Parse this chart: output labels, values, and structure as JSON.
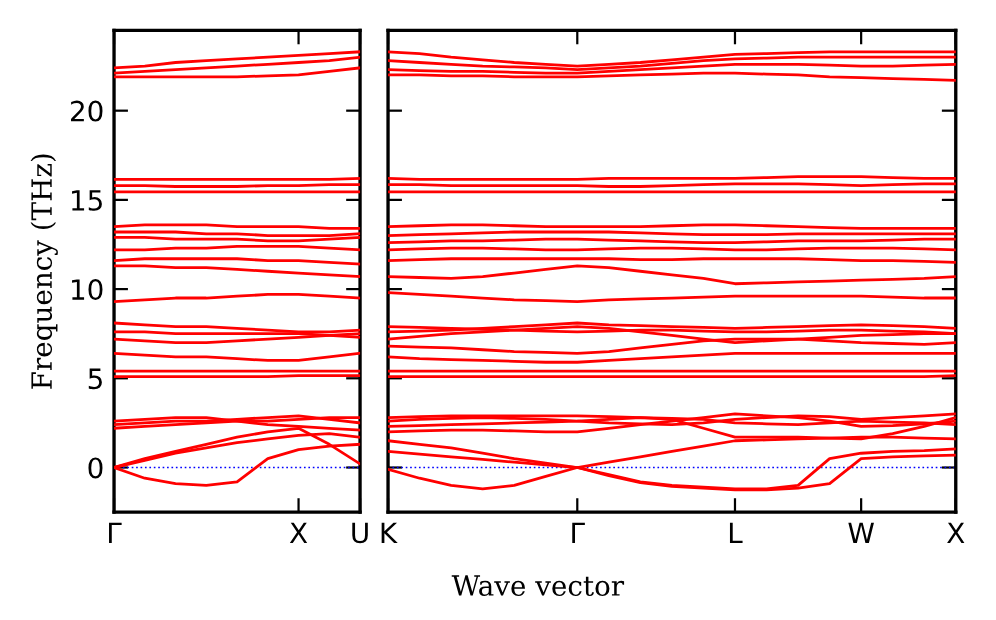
{
  "chart_data": [
    {
      "type": "line",
      "ylabel": "Frequency (THz)",
      "ylim": [
        -2.5,
        24.5
      ],
      "yticks": [
        0,
        5,
        10,
        15,
        20
      ],
      "categories": [
        "Γ",
        null,
        null,
        null,
        null,
        null,
        "X",
        null,
        "U"
      ],
      "ref_lines": [
        {
          "axis": "y",
          "value": 0,
          "color": "#0000ff",
          "line_style": "dotted"
        }
      ],
      "series": [
        {
          "color": "#ff0000",
          "values": [
            0,
            -0.6,
            -0.9,
            -1.0,
            -0.8,
            0.5,
            1.0,
            1.2,
            1.3
          ]
        },
        {
          "color": "#ff0000",
          "values": [
            0,
            0.4,
            0.8,
            1.1,
            1.4,
            1.6,
            1.8,
            1.9,
            1.7
          ]
        },
        {
          "color": "#ff0000",
          "values": [
            0,
            0.5,
            0.9,
            1.3,
            1.7,
            2.0,
            2.2,
            1.3,
            0.2
          ]
        },
        {
          "color": "#ff0000",
          "values": [
            2.2,
            2.3,
            2.4,
            2.5,
            2.6,
            2.6,
            2.7,
            2.8,
            2.8
          ]
        },
        {
          "color": "#ff0000",
          "values": [
            2.4,
            2.5,
            2.6,
            2.6,
            2.7,
            2.8,
            2.9,
            2.7,
            2.5
          ]
        },
        {
          "color": "#ff0000",
          "values": [
            2.6,
            2.7,
            2.8,
            2.8,
            2.6,
            2.4,
            2.3,
            2.2,
            2.1
          ]
        },
        {
          "color": "#ff0000",
          "values": [
            5.1,
            5.1,
            5.1,
            5.1,
            5.1,
            5.1,
            5.15,
            5.15,
            5.15
          ]
        },
        {
          "color": "#ff0000",
          "values": [
            5.4,
            5.4,
            5.4,
            5.4,
            5.4,
            5.4,
            5.4,
            5.4,
            5.4
          ]
        },
        {
          "color": "#ff0000",
          "values": [
            6.4,
            6.3,
            6.2,
            6.2,
            6.1,
            6.0,
            6.0,
            6.2,
            6.4
          ]
        },
        {
          "color": "#ff0000",
          "values": [
            7.2,
            7.1,
            7.0,
            7.0,
            7.1,
            7.2,
            7.3,
            7.4,
            7.5
          ]
        },
        {
          "color": "#ff0000",
          "values": [
            7.6,
            7.6,
            7.5,
            7.5,
            7.5,
            7.5,
            7.5,
            7.4,
            7.3
          ]
        },
        {
          "color": "#ff0000",
          "values": [
            8.1,
            8.0,
            7.9,
            7.9,
            7.8,
            7.7,
            7.6,
            7.6,
            7.7
          ]
        },
        {
          "color": "#ff0000",
          "values": [
            9.3,
            9.4,
            9.5,
            9.5,
            9.6,
            9.7,
            9.7,
            9.6,
            9.5
          ]
        },
        {
          "color": "#ff0000",
          "values": [
            11.3,
            11.3,
            11.2,
            11.2,
            11.1,
            11.0,
            10.9,
            10.8,
            10.7
          ]
        },
        {
          "color": "#ff0000",
          "values": [
            11.6,
            11.7,
            11.7,
            11.7,
            11.7,
            11.6,
            11.6,
            11.5,
            11.4
          ]
        },
        {
          "color": "#ff0000",
          "values": [
            12.2,
            12.2,
            12.3,
            12.3,
            12.4,
            12.4,
            12.4,
            12.3,
            12.2
          ]
        },
        {
          "color": "#ff0000",
          "values": [
            12.9,
            12.9,
            12.8,
            12.8,
            12.8,
            12.7,
            12.7,
            12.8,
            12.9
          ]
        },
        {
          "color": "#ff0000",
          "values": [
            13.2,
            13.2,
            13.2,
            13.1,
            13.1,
            13.0,
            13.0,
            13.0,
            13.1
          ]
        },
        {
          "color": "#ff0000",
          "values": [
            13.5,
            13.6,
            13.6,
            13.6,
            13.5,
            13.5,
            13.5,
            13.4,
            13.4
          ]
        },
        {
          "color": "#ff0000",
          "values": [
            15.45,
            15.45,
            15.45,
            15.45,
            15.45,
            15.45,
            15.45,
            15.45,
            15.45
          ]
        },
        {
          "color": "#ff0000",
          "values": [
            15.8,
            15.8,
            15.75,
            15.75,
            15.75,
            15.8,
            15.8,
            15.85,
            15.85
          ]
        },
        {
          "color": "#ff0000",
          "values": [
            16.15,
            16.15,
            16.15,
            16.15,
            16.15,
            16.15,
            16.15,
            16.15,
            16.2
          ]
        },
        {
          "color": "#ff0000",
          "values": [
            21.9,
            21.9,
            21.9,
            21.9,
            21.9,
            21.95,
            22.0,
            22.2,
            22.4
          ]
        },
        {
          "color": "#ff0000",
          "values": [
            22.1,
            22.2,
            22.3,
            22.4,
            22.5,
            22.6,
            22.7,
            22.8,
            23.0
          ]
        },
        {
          "color": "#ff0000",
          "values": [
            22.4,
            22.5,
            22.7,
            22.8,
            22.9,
            23.0,
            23.1,
            23.2,
            23.3
          ]
        }
      ]
    },
    {
      "type": "line",
      "xlabel": "Wave vector",
      "tick_labels": "x",
      "ylim": [
        -2.5,
        24.5
      ],
      "yticks": [
        0,
        5,
        10,
        15,
        20
      ],
      "categories": [
        "K",
        null,
        null,
        null,
        null,
        null,
        "Γ",
        null,
        null,
        null,
        null,
        "L",
        null,
        null,
        null,
        "W",
        null,
        null,
        "X"
      ],
      "ref_lines": [
        {
          "axis": "y",
          "value": 0,
          "color": "#0000ff",
          "line_style": "dotted"
        }
      ],
      "series": [
        {
          "color": "#ff0000",
          "values": [
            -0.1,
            -0.6,
            -1.0,
            -1.2,
            -1.0,
            -0.5,
            0,
            -0.4,
            -0.8,
            -1.0,
            -1.1,
            -1.2,
            -1.2,
            -1.0,
            0.5,
            0.8,
            0.9,
            0.95,
            1.05
          ]
        },
        {
          "color": "#ff0000",
          "values": [
            0.9,
            0.75,
            0.6,
            0.45,
            0.3,
            0.15,
            0,
            -0.45,
            -0.85,
            -1.05,
            -1.15,
            -1.25,
            -1.25,
            -1.15,
            -0.9,
            0.5,
            0.6,
            0.65,
            0.7
          ]
        },
        {
          "color": "#ff0000",
          "values": [
            1.5,
            1.3,
            1.1,
            0.8,
            0.5,
            0.25,
            0,
            0.3,
            0.6,
            0.9,
            1.2,
            1.5,
            1.55,
            1.6,
            1.65,
            1.7,
            1.7,
            1.65,
            1.6
          ]
        },
        {
          "color": "#ff0000",
          "values": [
            2.0,
            2.05,
            2.1,
            2.1,
            2.05,
            2.0,
            2.0,
            2.2,
            2.4,
            2.6,
            2.8,
            3.0,
            2.9,
            2.8,
            2.6,
            2.3,
            2.35,
            2.45,
            2.6
          ]
        },
        {
          "color": "#ff0000",
          "values": [
            2.3,
            2.35,
            2.4,
            2.45,
            2.5,
            2.55,
            2.6,
            2.7,
            2.8,
            2.7,
            2.2,
            1.7,
            1.7,
            1.7,
            1.65,
            1.6,
            1.9,
            2.3,
            2.8
          ]
        },
        {
          "color": "#ff0000",
          "values": [
            2.6,
            2.7,
            2.75,
            2.8,
            2.75,
            2.7,
            2.6,
            2.5,
            2.45,
            2.4,
            2.5,
            2.7,
            2.8,
            2.9,
            2.85,
            2.7,
            2.8,
            2.9,
            3.0
          ]
        },
        {
          "color": "#ff0000",
          "values": [
            2.8,
            2.85,
            2.9,
            2.9,
            2.9,
            2.9,
            2.9,
            2.85,
            2.8,
            2.75,
            2.7,
            2.5,
            2.45,
            2.4,
            2.5,
            2.6,
            2.55,
            2.5,
            2.4
          ]
        },
        {
          "color": "#ff0000",
          "values": [
            5.1,
            5.1,
            5.1,
            5.1,
            5.1,
            5.1,
            5.1,
            5.1,
            5.1,
            5.1,
            5.1,
            5.1,
            5.1,
            5.1,
            5.1,
            5.1,
            5.1,
            5.1,
            5.15
          ]
        },
        {
          "color": "#ff0000",
          "values": [
            5.4,
            5.4,
            5.4,
            5.4,
            5.4,
            5.4,
            5.4,
            5.4,
            5.4,
            5.4,
            5.4,
            5.4,
            5.4,
            5.4,
            5.4,
            5.4,
            5.4,
            5.4,
            5.4
          ]
        },
        {
          "color": "#ff0000",
          "values": [
            6.2,
            6.1,
            6.05,
            6.0,
            5.95,
            5.9,
            5.9,
            6.0,
            6.1,
            6.2,
            6.3,
            6.4,
            6.4,
            6.4,
            6.4,
            6.4,
            6.4,
            6.4,
            6.4
          ]
        },
        {
          "color": "#ff0000",
          "values": [
            6.8,
            6.75,
            6.7,
            6.6,
            6.5,
            6.45,
            6.4,
            6.5,
            6.7,
            6.9,
            7.1,
            7.2,
            7.2,
            7.2,
            7.1,
            7.0,
            6.95,
            6.9,
            7.0
          ]
        },
        {
          "color": "#ff0000",
          "values": [
            7.2,
            7.35,
            7.5,
            7.6,
            7.7,
            7.8,
            7.9,
            7.8,
            7.6,
            7.4,
            7.2,
            7.0,
            7.1,
            7.2,
            7.3,
            7.4,
            7.45,
            7.5,
            7.5
          ]
        },
        {
          "color": "#ff0000",
          "values": [
            7.6,
            7.65,
            7.7,
            7.8,
            7.9,
            8.0,
            8.1,
            8.0,
            7.95,
            7.9,
            7.85,
            7.8,
            7.85,
            7.9,
            7.95,
            8.0,
            7.95,
            7.9,
            7.8
          ]
        },
        {
          "color": "#ff0000",
          "values": [
            7.9,
            7.85,
            7.8,
            7.75,
            7.7,
            7.65,
            7.6,
            7.65,
            7.7,
            7.7,
            7.65,
            7.6,
            7.6,
            7.65,
            7.7,
            7.7,
            7.65,
            7.6,
            7.5
          ]
        },
        {
          "color": "#ff0000",
          "values": [
            9.8,
            9.7,
            9.6,
            9.5,
            9.4,
            9.35,
            9.3,
            9.4,
            9.45,
            9.5,
            9.55,
            9.6,
            9.6,
            9.6,
            9.6,
            9.6,
            9.55,
            9.5,
            9.5
          ]
        },
        {
          "color": "#ff0000",
          "values": [
            10.7,
            10.65,
            10.6,
            10.7,
            10.9,
            11.1,
            11.3,
            11.2,
            11.0,
            10.8,
            10.6,
            10.3,
            10.35,
            10.4,
            10.45,
            10.5,
            10.55,
            10.6,
            10.7
          ]
        },
        {
          "color": "#ff0000",
          "values": [
            11.6,
            11.65,
            11.7,
            11.7,
            11.7,
            11.7,
            11.7,
            11.7,
            11.65,
            11.65,
            11.7,
            11.7,
            11.7,
            11.7,
            11.65,
            11.6,
            11.6,
            11.55,
            11.5
          ]
        },
        {
          "color": "#ff0000",
          "values": [
            12.2,
            12.25,
            12.3,
            12.3,
            12.25,
            12.2,
            12.2,
            12.25,
            12.3,
            12.3,
            12.25,
            12.2,
            12.2,
            12.25,
            12.3,
            12.3,
            12.3,
            12.25,
            12.2
          ]
        },
        {
          "color": "#ff0000",
          "values": [
            12.6,
            12.65,
            12.7,
            12.7,
            12.75,
            12.8,
            12.8,
            12.75,
            12.7,
            12.65,
            12.6,
            12.6,
            12.65,
            12.7,
            12.7,
            12.7,
            12.75,
            12.8,
            12.8
          ]
        },
        {
          "color": "#ff0000",
          "values": [
            13.0,
            13.05,
            13.1,
            13.15,
            13.2,
            13.2,
            13.2,
            13.2,
            13.15,
            13.1,
            13.05,
            13.05,
            13.05,
            13.1,
            13.1,
            13.1,
            13.1,
            13.1,
            13.1
          ]
        },
        {
          "color": "#ff0000",
          "values": [
            13.5,
            13.55,
            13.6,
            13.6,
            13.55,
            13.5,
            13.5,
            13.5,
            13.5,
            13.55,
            13.6,
            13.6,
            13.55,
            13.5,
            13.45,
            13.4,
            13.4,
            13.4,
            13.4
          ]
        },
        {
          "color": "#ff0000",
          "values": [
            15.45,
            15.45,
            15.45,
            15.45,
            15.45,
            15.45,
            15.45,
            15.45,
            15.45,
            15.45,
            15.45,
            15.45,
            15.45,
            15.45,
            15.45,
            15.45,
            15.45,
            15.45,
            15.45
          ]
        },
        {
          "color": "#ff0000",
          "values": [
            15.85,
            15.85,
            15.8,
            15.8,
            15.8,
            15.8,
            15.8,
            15.75,
            15.75,
            15.8,
            15.85,
            15.9,
            15.9,
            15.9,
            15.85,
            15.8,
            15.85,
            15.9,
            15.9
          ]
        },
        {
          "color": "#ff0000",
          "values": [
            16.2,
            16.15,
            16.15,
            16.15,
            16.15,
            16.15,
            16.15,
            16.2,
            16.2,
            16.2,
            16.2,
            16.2,
            16.25,
            16.3,
            16.3,
            16.3,
            16.25,
            16.2,
            16.2
          ]
        },
        {
          "color": "#ff0000",
          "values": [
            22.0,
            22.0,
            21.95,
            21.95,
            21.9,
            21.9,
            21.9,
            21.95,
            22.0,
            22.05,
            22.1,
            22.1,
            22.05,
            22.0,
            21.9,
            21.85,
            21.8,
            21.75,
            21.7
          ]
        },
        {
          "color": "#ff0000",
          "values": [
            22.3,
            22.25,
            22.2,
            22.2,
            22.15,
            22.1,
            22.1,
            22.2,
            22.3,
            22.4,
            22.5,
            22.6,
            22.6,
            22.6,
            22.55,
            22.5,
            22.5,
            22.55,
            22.6
          ]
        },
        {
          "color": "#ff0000",
          "values": [
            22.8,
            22.7,
            22.6,
            22.5,
            22.45,
            22.4,
            22.3,
            22.4,
            22.5,
            22.65,
            22.8,
            22.9,
            22.95,
            23.0,
            23.0,
            23.0,
            23.0,
            23.0,
            23.0
          ]
        },
        {
          "color": "#ff0000",
          "values": [
            23.3,
            23.2,
            23.0,
            22.85,
            22.7,
            22.6,
            22.5,
            22.6,
            22.7,
            22.85,
            23.0,
            23.15,
            23.2,
            23.25,
            23.3,
            23.3,
            23.3,
            23.3,
            23.3
          ]
        }
      ]
    }
  ]
}
